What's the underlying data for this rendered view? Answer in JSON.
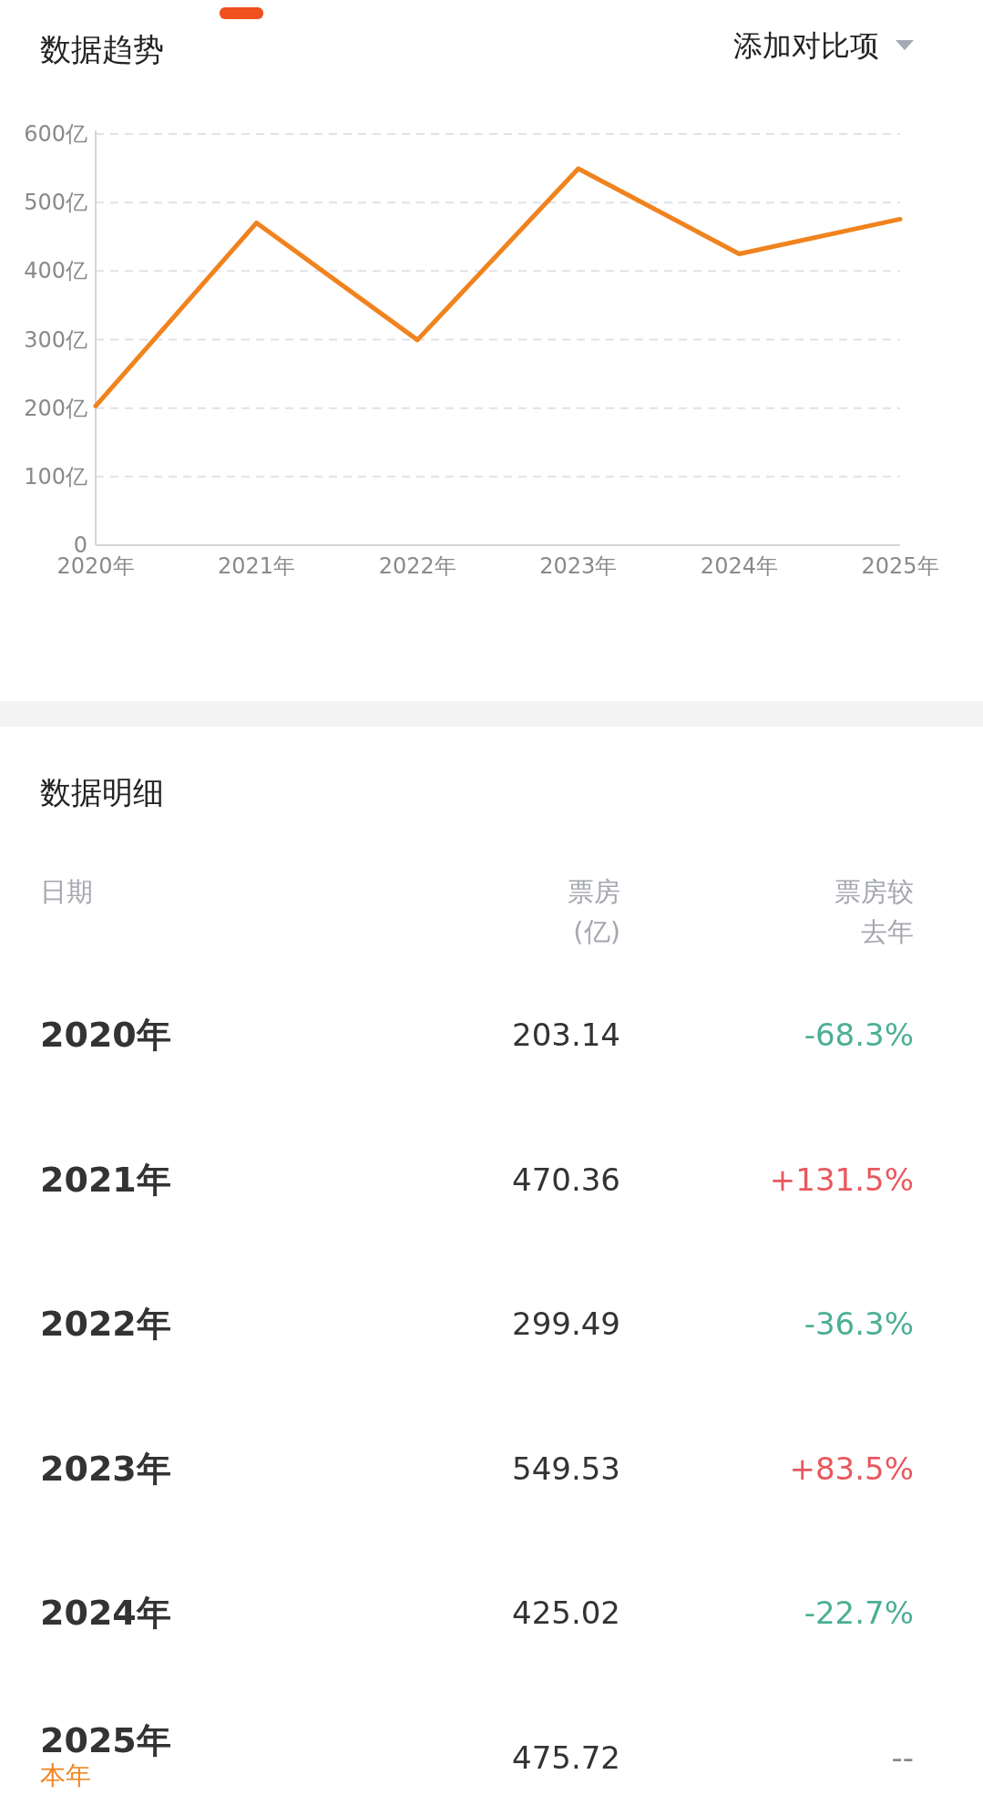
{
  "chart_data": [
    {
      "type": "line",
      "title": "数据趋势",
      "annotations": [
        "添加对比项"
      ],
      "categories": [
        "2020年",
        "2021年",
        "2022年",
        "2023年",
        "2024年",
        "2025年"
      ],
      "series": [
        {
          "color": "#f0831e",
          "values": [
            203.14,
            470.36,
            299.49,
            549.53,
            425.02,
            475.72
          ]
        }
      ],
      "ylim": [
        0,
        600
      ],
      "yticks": [
        0,
        {
          "value": 100,
          "label": "100亿"
        },
        {
          "value": 200,
          "label": "200亿"
        },
        {
          "value": 300,
          "label": "300亿"
        },
        {
          "value": 400,
          "label": "400亿"
        },
        {
          "value": 500,
          "label": "500亿"
        },
        {
          "value": 600,
          "label": "600亿"
        }
      ],
      "grid": "y"
    },
    {
      "type": "heatmap",
      "title": "数据明细",
      "ylabel": "日期",
      "annotations": [
        "本年"
      ],
      "categories": [
        "票房 (亿)",
        "票房较去年"
      ],
      "y_categories": [
        "2020年",
        "2021年",
        "2022年",
        "2023年",
        "2024年",
        "2025年"
      ],
      "cells": [
        [
          203.14,
          -68.3
        ],
        [
          470.36,
          131.5
        ],
        [
          299.49,
          -36.3
        ],
        [
          549.53,
          83.5
        ],
        [
          425.02,
          -22.7
        ],
        [
          475.72,
          null
        ]
      ],
      "cell_labels": [
        [
          "203.14",
          "-68.3%"
        ],
        [
          "470.36",
          "+131.5%"
        ],
        [
          "299.49",
          "-36.3%"
        ],
        [
          "549.53",
          "+83.5%"
        ],
        [
          "425.02",
          "-22.7%"
        ],
        [
          "475.72",
          "--"
        ]
      ]
    }
  ]
}
